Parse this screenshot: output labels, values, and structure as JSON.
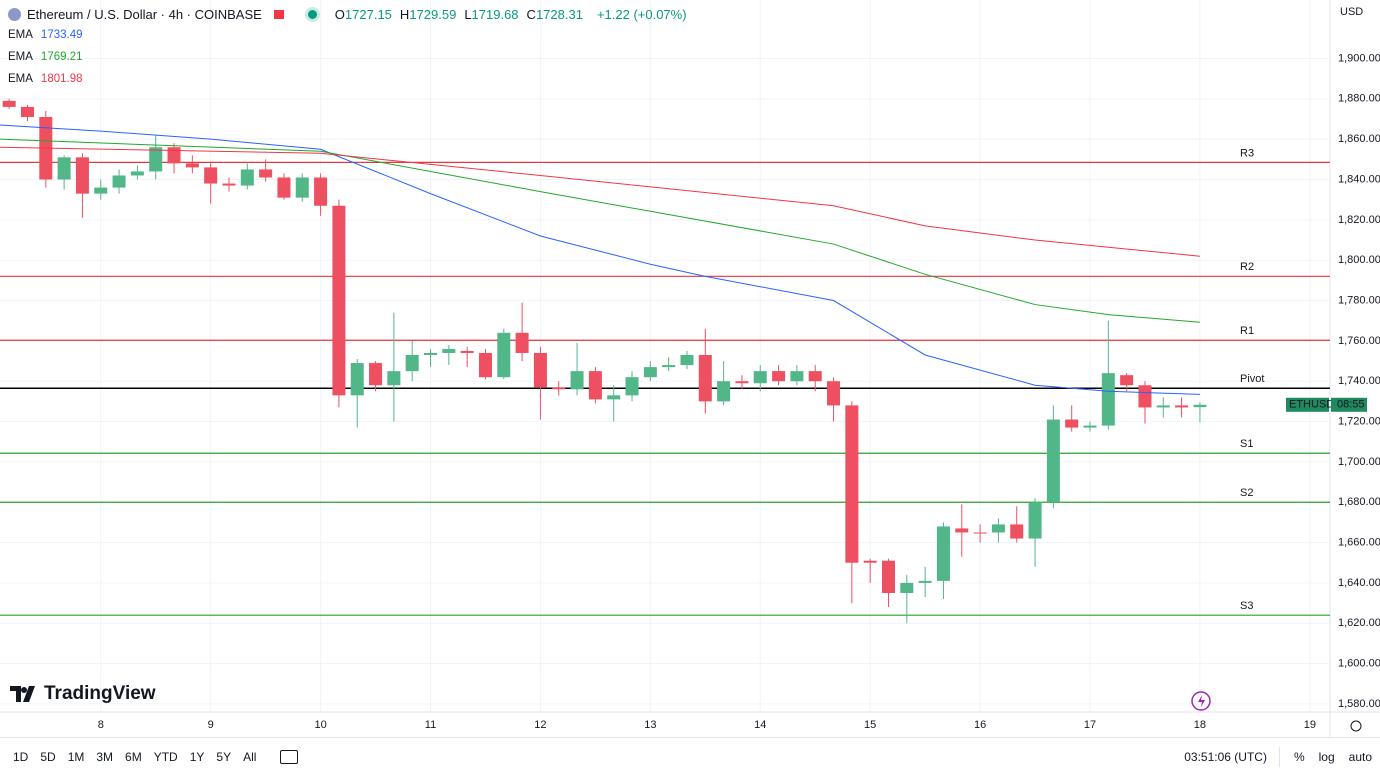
{
  "header": {
    "title": "Ethereum / U.S. Dollar · 4h · COINBASE",
    "ohlc": [
      {
        "label": "O",
        "value": 1727.15
      },
      {
        "label": "H",
        "value": 1729.59
      },
      {
        "label": "L",
        "value": 1719.68
      },
      {
        "label": "C",
        "value": 1728.31
      }
    ],
    "change": "+1.22 (+0.07%)"
  },
  "chart_data": {
    "type": "candlestick",
    "currency": "USD",
    "up_color": "#52b788",
    "down_color": "#ef5061",
    "grid": true,
    "xlim": [
      -0.5,
      72.1
    ],
    "ylim": [
      1576,
      1929
    ],
    "xticks": [
      {
        "value": 5,
        "label": "8"
      },
      {
        "value": 11,
        "label": "9"
      },
      {
        "value": 17,
        "label": "10"
      },
      {
        "value": 23,
        "label": "11"
      },
      {
        "value": 29,
        "label": "12"
      },
      {
        "value": 35,
        "label": "13"
      },
      {
        "value": 41,
        "label": "14"
      },
      {
        "value": 47,
        "label": "15"
      },
      {
        "value": 53,
        "label": "16"
      },
      {
        "value": 59,
        "label": "17"
      },
      {
        "value": 65,
        "label": "18"
      },
      {
        "value": 71,
        "label": "19"
      }
    ],
    "yticks": [
      {
        "value": 1580,
        "label": "1,580.00"
      },
      {
        "value": 1600,
        "label": "1,600.00"
      },
      {
        "value": 1620,
        "label": "1,620.00"
      },
      {
        "value": 1640,
        "label": "1,640.00"
      },
      {
        "value": 1660,
        "label": "1,660.00"
      },
      {
        "value": 1680,
        "label": "1,680.00"
      },
      {
        "value": 1700,
        "label": "1,700.00"
      },
      {
        "value": 1720,
        "label": "1,720.00"
      },
      {
        "value": 1740,
        "label": "1,740.00"
      },
      {
        "value": 1760,
        "label": "1,760.00"
      },
      {
        "value": 1780,
        "label": "1,780.00"
      },
      {
        "value": 1800,
        "label": "1,800.00"
      },
      {
        "value": 1820,
        "label": "1,820.00"
      },
      {
        "value": 1840,
        "label": "1,840.00"
      },
      {
        "value": 1860,
        "label": "1,860.00"
      },
      {
        "value": 1880,
        "label": "1,880.00"
      },
      {
        "value": 1900,
        "label": "1,900.00"
      }
    ],
    "candles": {
      "open": [
        1879,
        1876,
        1871,
        1840,
        1851,
        1833,
        1836,
        1842,
        1844,
        1856,
        1848,
        1846,
        1838,
        1837,
        1845,
        1841,
        1831,
        1841,
        1827,
        1733,
        1749,
        1738,
        1745,
        1753,
        1754,
        1755,
        1754,
        1742,
        1764,
        1754,
        1737,
        1736,
        1745,
        1731,
        1733,
        1742,
        1747,
        1748,
        1753,
        1730,
        1740,
        1739,
        1745,
        1740,
        1745,
        1740,
        1728,
        1651,
        1651,
        1635,
        1640,
        1641,
        1667,
        1665,
        1665,
        1669,
        1662,
        1680,
        1721,
        1717,
        1718,
        1743,
        1738,
        1727,
        1728,
        1727.15
      ],
      "high": [
        1880,
        1877,
        1874,
        1852,
        1853,
        1840,
        1845,
        1847,
        1862,
        1858,
        1852,
        1848,
        1841,
        1848,
        1850,
        1843,
        1843,
        1843,
        1830,
        1751,
        1750,
        1774,
        1760,
        1756,
        1758,
        1757,
        1756,
        1766,
        1779,
        1757,
        1740,
        1759,
        1747,
        1738,
        1745,
        1750,
        1752,
        1755,
        1766,
        1750,
        1743,
        1748,
        1748,
        1748,
        1748,
        1742,
        1730,
        1652,
        1652,
        1644,
        1648,
        1670,
        1679,
        1669,
        1672,
        1678,
        1682,
        1728,
        1728,
        1720,
        1770,
        1744,
        1740,
        1732,
        1732,
        1729.59
      ],
      "low": [
        1875,
        1869,
        1836,
        1835,
        1821,
        1830,
        1833,
        1840,
        1840,
        1843,
        1843,
        1828,
        1834,
        1835,
        1839,
        1830,
        1829,
        1822,
        1727,
        1717,
        1735,
        1720,
        1740,
        1747,
        1748,
        1747,
        1741,
        1741,
        1750,
        1721,
        1733,
        1733,
        1729,
        1720,
        1730,
        1740,
        1745,
        1746,
        1724,
        1728,
        1736,
        1735,
        1738,
        1738,
        1735,
        1720,
        1630,
        1640,
        1628,
        1620,
        1633,
        1632,
        1653,
        1660,
        1660,
        1660,
        1648,
        1677,
        1715,
        1715,
        1716,
        1735,
        1719,
        1722,
        1722,
        1719.68
      ],
      "close": [
        1876,
        1871,
        1840,
        1851,
        1833,
        1836,
        1842,
        1844,
        1856,
        1848,
        1846,
        1838,
        1837,
        1845,
        1841,
        1831,
        1841,
        1827,
        1733,
        1749,
        1738,
        1745,
        1753,
        1754,
        1756,
        1754,
        1742,
        1764,
        1754,
        1737,
        1736,
        1745,
        1731,
        1733,
        1742,
        1747,
        1748,
        1753,
        1730,
        1740,
        1739,
        1745,
        1740,
        1745,
        1740,
        1728,
        1650,
        1650,
        1635,
        1640,
        1641,
        1668,
        1665,
        1665,
        1669,
        1662,
        1680,
        1721,
        1717,
        1718,
        1744,
        1738,
        1727,
        1728,
        1727,
        1728.31
      ]
    },
    "series": [
      {
        "name": "EMA",
        "color": "#2962ff",
        "x": [
          -0.5,
          5,
          11,
          17,
          23,
          29,
          35,
          38,
          45,
          50,
          56,
          60,
          65
        ],
        "values": [
          1867,
          1864,
          1860,
          1855,
          1833,
          1812,
          1798,
          1792,
          1780,
          1753,
          1738,
          1735,
          1733.49
        ]
      },
      {
        "name": "EMA",
        "color": "#22a82c",
        "x": [
          -0.5,
          17,
          29,
          45,
          50,
          56,
          60,
          65
        ],
        "values": [
          1860,
          1854,
          1834,
          1808,
          1793,
          1778,
          1773,
          1769.21
        ]
      },
      {
        "name": "EMA",
        "color": "#f23645",
        "x": [
          -0.5,
          17,
          29,
          45,
          50,
          56,
          65
        ],
        "values": [
          1856,
          1853,
          1842,
          1827,
          1817,
          1810,
          1801.98
        ]
      }
    ],
    "levels": [
      {
        "name": "R3",
        "value": 1848.5,
        "color": "#e0393e"
      },
      {
        "name": "R2",
        "value": 1792,
        "color": "#e0393e"
      },
      {
        "name": "R1",
        "value": 1760.3,
        "color": "#e0393e"
      },
      {
        "name": "Pivot",
        "value": 1736.5,
        "color": "#000000"
      },
      {
        "name": "S1",
        "value": 1704.3,
        "color": "#2ca02c"
      },
      {
        "name": "S2",
        "value": 1680,
        "color": "#2ca02c"
      },
      {
        "name": "S3",
        "value": 1624,
        "color": "#2ca02c"
      }
    ],
    "price_tag": {
      "symbol": "ETHUSD",
      "countdown": "08:55"
    }
  },
  "logo": "TradingView",
  "toolbar": {
    "ranges": [
      "1D",
      "5D",
      "1M",
      "3M",
      "6M",
      "YTD",
      "1Y",
      "5Y",
      "All"
    ],
    "time": "03:51:06 (UTC)",
    "options": [
      "%",
      "log",
      "auto"
    ]
  }
}
